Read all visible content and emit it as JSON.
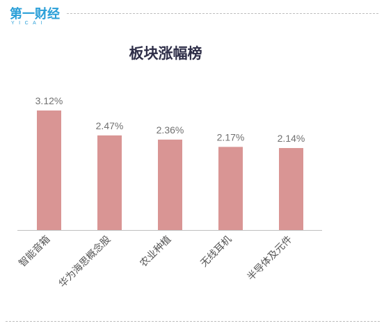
{
  "brand": {
    "name": "第一财经",
    "sub": "YICAI",
    "color": "#2a9fd8"
  },
  "chart_data": {
    "type": "bar",
    "title": "板块涨幅榜",
    "categories": [
      "智能音箱",
      "华为海思概念股",
      "农业种植",
      "无线耳机",
      "半导体及元件"
    ],
    "values": [
      3.12,
      2.47,
      2.36,
      2.17,
      2.14
    ],
    "value_labels": [
      "3.12%",
      "2.47%",
      "2.36%",
      "2.17%",
      "2.14%"
    ],
    "unit": "%",
    "ylim": [
      0,
      3.12
    ],
    "grid": false,
    "legend": "none",
    "bar_color": "#d99594",
    "axis_color": "#bfbfbf"
  }
}
